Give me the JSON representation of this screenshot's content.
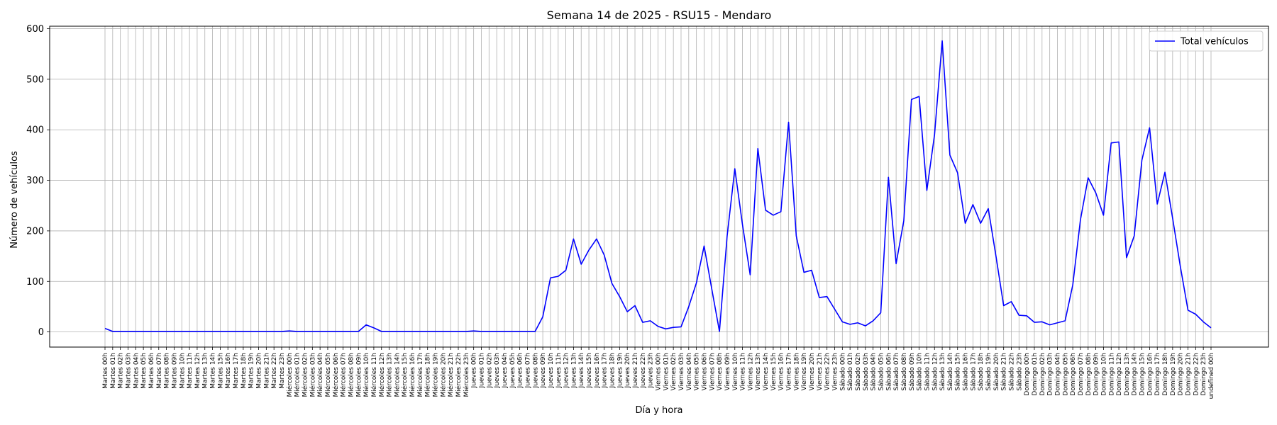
{
  "chart_data": {
    "type": "line",
    "title": "Semana 14 de 2025 - RSU15 - Mendaro",
    "xlabel": "Día y hora",
    "ylabel": "Número de vehículos",
    "ylim": [
      -30,
      605
    ],
    "yticks": [
      0,
      100,
      200,
      300,
      400,
      500,
      600
    ],
    "grid": true,
    "legend": "top-right",
    "color": "#0000ff",
    "days": [
      "Martes",
      "Miércoles",
      "Jueves",
      "Viernes",
      "Sábado",
      "Domingo"
    ],
    "series": [
      {
        "name": "Total vehículos",
        "values": [
          7,
          1,
          1,
          1,
          1,
          1,
          1,
          1,
          1,
          1,
          1,
          1,
          1,
          1,
          1,
          1,
          1,
          1,
          1,
          1,
          1,
          1,
          1,
          1,
          2,
          1,
          1,
          1,
          1,
          1,
          1,
          1,
          1,
          1,
          14,
          8,
          1,
          1,
          1,
          1,
          1,
          1,
          1,
          1,
          1,
          1,
          1,
          1,
          2,
          1,
          1,
          1,
          1,
          1,
          1,
          1,
          1,
          30,
          107,
          110,
          122,
          184,
          134,
          162,
          184,
          152,
          96,
          70,
          40,
          52,
          19,
          22,
          11,
          6,
          9,
          10,
          50,
          97,
          170,
          85,
          1,
          190,
          323,
          212,
          113,
          363,
          241,
          231,
          238,
          415,
          190,
          118,
          122,
          68,
          70,
          45,
          20,
          15,
          18,
          12,
          22,
          38,
          306,
          135,
          220,
          460,
          466,
          280,
          390,
          576,
          350,
          315,
          215,
          252,
          215,
          244,
          150,
          52,
          60,
          33,
          32,
          19,
          20,
          14,
          18,
          22,
          93,
          222,
          305,
          275,
          231,
          374,
          376,
          147,
          190,
          340,
          404,
          253,
          316,
          225,
          130,
          43,
          35,
          20,
          8
        ]
      }
    ]
  }
}
